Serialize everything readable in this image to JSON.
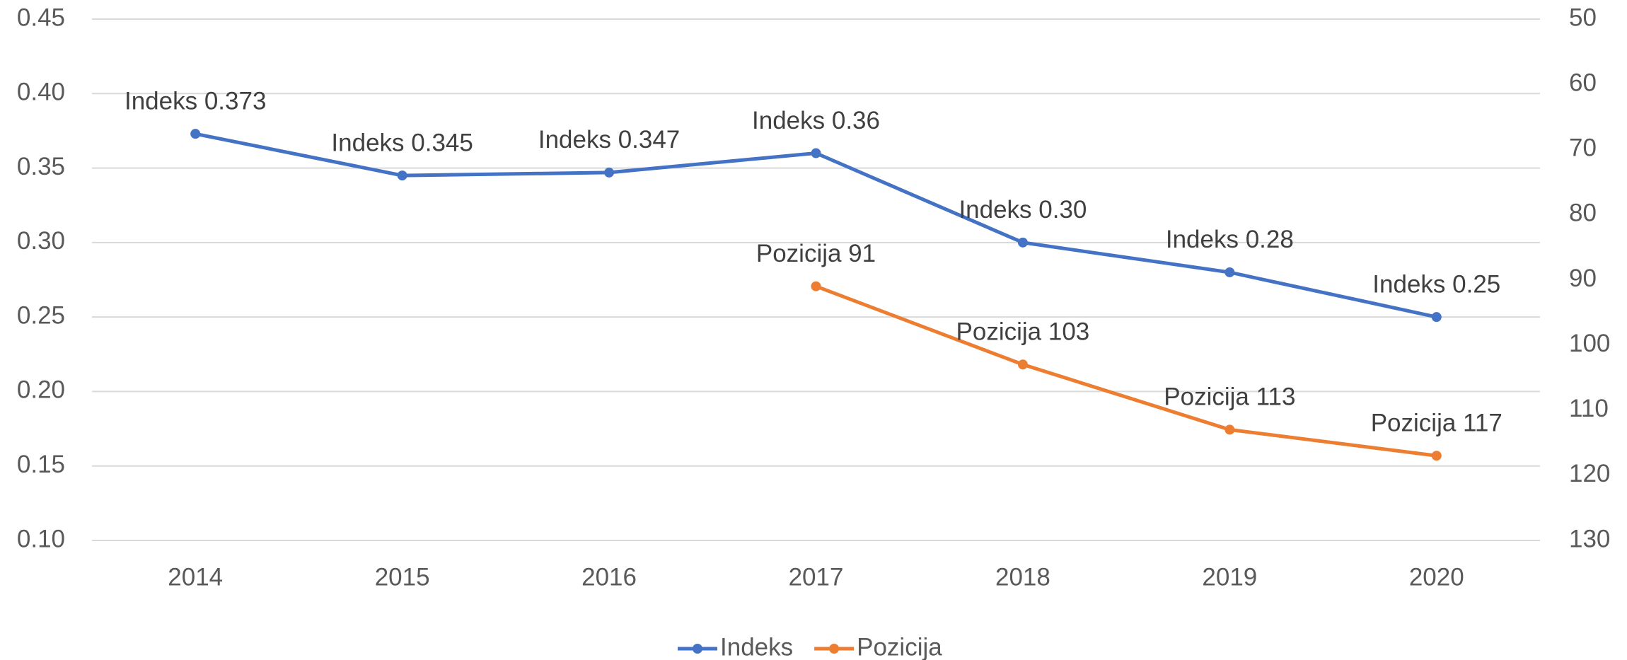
{
  "chart_data": {
    "type": "line",
    "categories": [
      "2014",
      "2015",
      "2016",
      "2017",
      "2018",
      "2019",
      "2020"
    ],
    "series": [
      {
        "name": "Indeks",
        "color": "#4472c4",
        "values": [
          0.373,
          0.345,
          0.347,
          0.36,
          0.3,
          0.28,
          0.25
        ],
        "value_labels": [
          "Indeks 0.373",
          "Indeks 0.345",
          "Indeks 0.347",
          "Indeks 0.36",
          "Indeks 0.30",
          "Indeks 0.28",
          "Indeks 0.25"
        ]
      },
      {
        "name": "Pozicija",
        "color": "#ed7d31",
        "axis": "y2",
        "values": [
          null,
          null,
          null,
          91,
          103,
          113,
          117
        ],
        "value_labels": [
          null,
          null,
          null,
          "Pozicija 91",
          "Pozicija 103",
          "Pozicija 113",
          "Pozicija 117"
        ]
      }
    ],
    "ylim": [
      0.1,
      0.45
    ],
    "yticks": [
      {
        "value": 0.1,
        "label": "0.10"
      },
      {
        "value": 0.15,
        "label": "0.15"
      },
      {
        "value": 0.2,
        "label": "0.20"
      },
      {
        "value": 0.25,
        "label": "0.25"
      },
      {
        "value": 0.3,
        "label": "0.30"
      },
      {
        "value": 0.35,
        "label": "0.35"
      },
      {
        "value": 0.4,
        "label": "0.40"
      },
      {
        "value": 0.45,
        "label": "0.45"
      }
    ],
    "y2lim": [
      130,
      50
    ],
    "y2ticks": [
      130,
      120,
      110,
      100,
      90,
      80,
      70,
      60,
      50
    ],
    "grid": true,
    "legend": "bottom"
  }
}
